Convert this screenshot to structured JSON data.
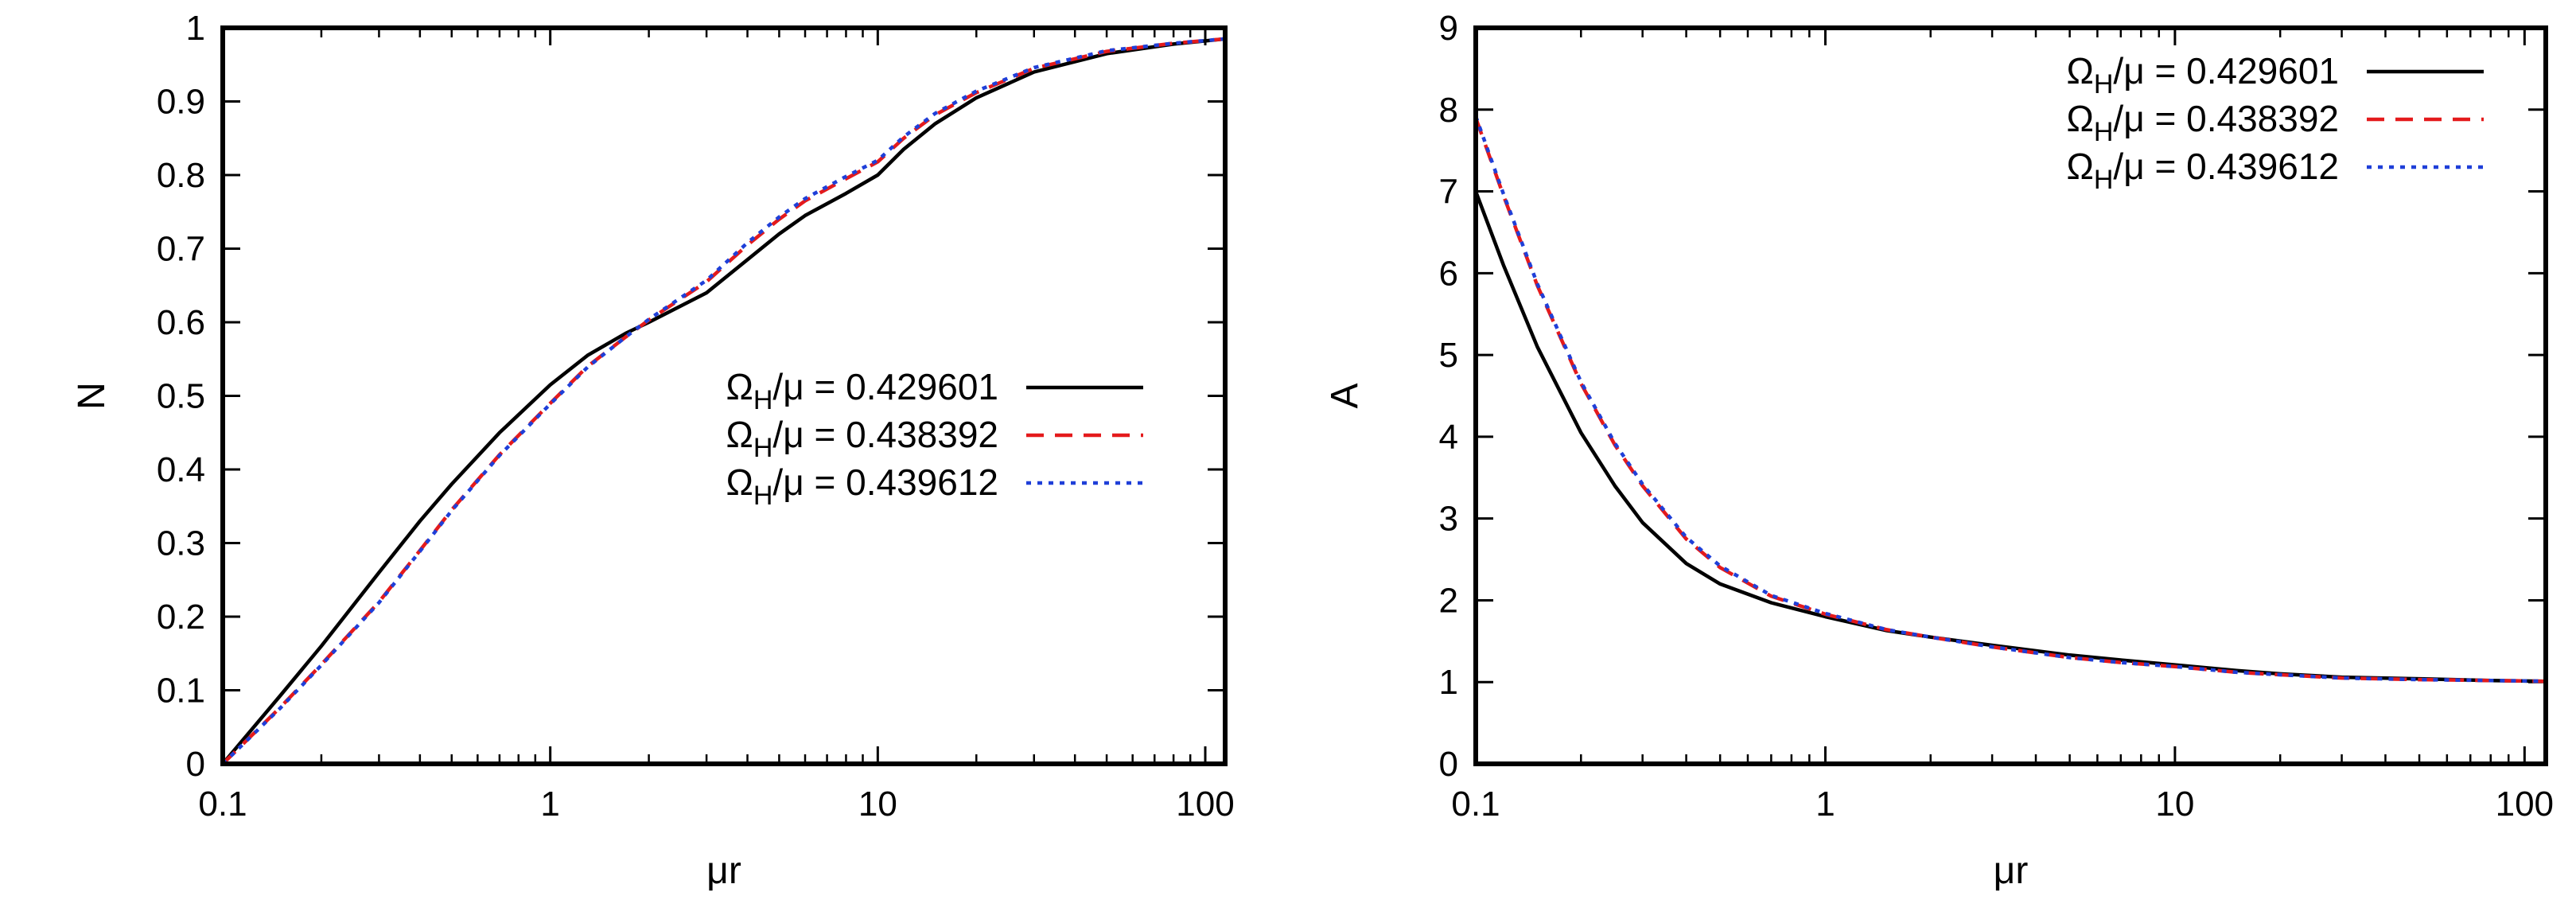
{
  "chart_data": [
    {
      "type": "line",
      "panel": "left",
      "xlabel": "μr",
      "ylabel": "N",
      "xscale": "log",
      "xlim": [
        0.1,
        115
      ],
      "ylim": [
        0,
        1
      ],
      "xticks": [
        0.1,
        1,
        10,
        100
      ],
      "xtick_labels": [
        "0.1",
        "1",
        "10",
        "100"
      ],
      "yticks": [
        0,
        0.1,
        0.2,
        0.3,
        0.4,
        0.5,
        0.6,
        0.7,
        0.8,
        0.9,
        1
      ],
      "ytick_labels": [
        "0",
        "0.1",
        "0.2",
        "0.3",
        "0.4",
        "0.5",
        "0.6",
        "0.7",
        "0.8",
        "0.9",
        "1"
      ],
      "grid": false,
      "legend_position": "center-right",
      "series": [
        {
          "name_prefix": "Ω",
          "name_sub": "H",
          "name_suffix": "/μ = 0.429601",
          "color": "#000000",
          "style": "solid",
          "x": [
            0.1,
            0.15,
            0.2,
            0.3,
            0.4,
            0.5,
            0.7,
            1,
            1.3,
            1.7,
            2,
            3,
            4,
            5,
            6,
            8,
            10,
            12,
            15,
            20,
            30,
            50,
            80,
            115
          ],
          "y": [
            0.0,
            0.093,
            0.16,
            0.26,
            0.33,
            0.38,
            0.45,
            0.515,
            0.555,
            0.585,
            0.6,
            0.64,
            0.685,
            0.72,
            0.745,
            0.775,
            0.8,
            0.835,
            0.87,
            0.905,
            0.94,
            0.965,
            0.978,
            0.985
          ]
        },
        {
          "name_prefix": "Ω",
          "name_sub": "H",
          "name_suffix": "/μ = 0.438392",
          "color": "#e41a1c",
          "style": "dashed",
          "x": [
            0.1,
            0.15,
            0.2,
            0.3,
            0.4,
            0.5,
            0.7,
            1,
            1.3,
            1.7,
            2,
            3,
            4,
            5,
            6,
            8,
            10,
            12,
            15,
            20,
            30,
            50,
            80,
            115
          ],
          "y": [
            0.0,
            0.077,
            0.135,
            0.22,
            0.29,
            0.345,
            0.42,
            0.49,
            0.54,
            0.58,
            0.603,
            0.655,
            0.705,
            0.74,
            0.765,
            0.795,
            0.818,
            0.85,
            0.882,
            0.912,
            0.945,
            0.968,
            0.979,
            0.985
          ]
        },
        {
          "name_prefix": "Ω",
          "name_sub": "H",
          "name_suffix": "/μ = 0.439612",
          "color": "#1f3fd8",
          "style": "dotted",
          "x": [
            0.1,
            0.15,
            0.2,
            0.3,
            0.4,
            0.5,
            0.7,
            1,
            1.3,
            1.7,
            2,
            3,
            4,
            5,
            6,
            8,
            10,
            12,
            15,
            20,
            30,
            50,
            80,
            115
          ],
          "y": [
            0.0,
            0.076,
            0.134,
            0.219,
            0.289,
            0.344,
            0.419,
            0.489,
            0.539,
            0.58,
            0.604,
            0.657,
            0.708,
            0.743,
            0.768,
            0.798,
            0.82,
            0.852,
            0.884,
            0.914,
            0.946,
            0.969,
            0.979,
            0.985
          ]
        }
      ]
    },
    {
      "type": "line",
      "panel": "right",
      "xlabel": "μr",
      "ylabel": "A",
      "xscale": "log",
      "xlim": [
        0.1,
        115
      ],
      "ylim": [
        0,
        9
      ],
      "xticks": [
        0.1,
        1,
        10,
        100
      ],
      "xtick_labels": [
        "0.1",
        "1",
        "10",
        "100"
      ],
      "yticks": [
        0,
        1,
        2,
        3,
        4,
        5,
        6,
        7,
        8,
        9
      ],
      "ytick_labels": [
        "0",
        "1",
        "2",
        "3",
        "4",
        "5",
        "6",
        "7",
        "8",
        "9"
      ],
      "grid": false,
      "legend_position": "top-right",
      "series": [
        {
          "name_prefix": "Ω",
          "name_sub": "H",
          "name_suffix": "/μ = 0.429601",
          "color": "#000000",
          "style": "solid",
          "x": [
            0.1,
            0.12,
            0.15,
            0.2,
            0.25,
            0.3,
            0.4,
            0.5,
            0.7,
            1,
            1.5,
            2,
            3,
            5,
            7,
            10,
            15,
            20,
            30,
            50,
            80,
            115
          ],
          "y": [
            7.0,
            6.1,
            5.1,
            4.05,
            3.4,
            2.95,
            2.45,
            2.2,
            1.97,
            1.8,
            1.63,
            1.55,
            1.45,
            1.33,
            1.27,
            1.21,
            1.14,
            1.1,
            1.06,
            1.04,
            1.02,
            1.01
          ]
        },
        {
          "name_prefix": "Ω",
          "name_sub": "H",
          "name_suffix": "/μ = 0.438392",
          "color": "#e41a1c",
          "style": "dashed",
          "x": [
            0.1,
            0.12,
            0.15,
            0.2,
            0.25,
            0.3,
            0.4,
            0.5,
            0.7,
            1,
            1.5,
            2,
            3,
            5,
            7,
            10,
            15,
            20,
            30,
            50,
            80,
            115
          ],
          "y": [
            7.9,
            6.95,
            5.85,
            4.65,
            3.9,
            3.4,
            2.75,
            2.4,
            2.05,
            1.83,
            1.64,
            1.55,
            1.43,
            1.3,
            1.24,
            1.19,
            1.12,
            1.09,
            1.05,
            1.03,
            1.02,
            1.01
          ]
        },
        {
          "name_prefix": "Ω",
          "name_sub": "H",
          "name_suffix": "/μ = 0.439612",
          "color": "#1f3fd8",
          "style": "dotted",
          "x": [
            0.1,
            0.12,
            0.15,
            0.2,
            0.25,
            0.3,
            0.4,
            0.5,
            0.7,
            1,
            1.5,
            2,
            3,
            5,
            7,
            10,
            15,
            20,
            30,
            50,
            80,
            115
          ],
          "y": [
            7.92,
            6.97,
            5.87,
            4.67,
            3.92,
            3.42,
            2.77,
            2.42,
            2.06,
            1.84,
            1.64,
            1.55,
            1.43,
            1.3,
            1.24,
            1.19,
            1.12,
            1.09,
            1.05,
            1.03,
            1.02,
            1.01
          ]
        }
      ]
    }
  ]
}
